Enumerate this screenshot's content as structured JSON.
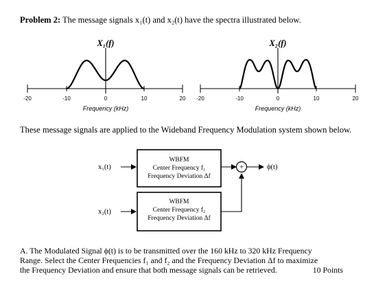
{
  "header": {
    "problem_label": "Problem 2:",
    "statement": "The message signals x₁(t) and x₂(t) have the spectra illustrated below."
  },
  "plots": [
    {
      "label": "X₁(f)",
      "xlabel": "Frequency (kHz)",
      "ticks": [
        "-20",
        "-10",
        "0",
        "10",
        "20"
      ]
    },
    {
      "label": "X₂(f)",
      "xlabel": "Frequency (kHz)",
      "ticks": [
        "-20",
        "-10",
        "0",
        "10",
        "20"
      ]
    }
  ],
  "intro": "These message signals are applied to the Wideband Frequency Modulation system shown below.",
  "system": {
    "input1": "x₁(t)",
    "input2": "x₂(t)",
    "block1": {
      "title": "WBFM",
      "line1": "Center Frequency f₁",
      "line2": "Frequency Deviation Δf"
    },
    "block2": {
      "title": "WBFM",
      "line1": "Center Frequency f₂",
      "line2": "Frequency Deviation Δf"
    },
    "adder_symbol": "+",
    "output": "ϕ(t)"
  },
  "question": {
    "line1": "A.  The Modulated Signal ϕ(t) is to be transmitted over the 160 kHz to 320 kHz Frequency",
    "line2": "Range.  Select the Center Frequencies f₁ and f₂ and the Frequency Deviation Δf to maximize",
    "line3": "the Frequency Deviation and ensure that both message signals can be retrieved.",
    "points": "10 Points"
  }
}
